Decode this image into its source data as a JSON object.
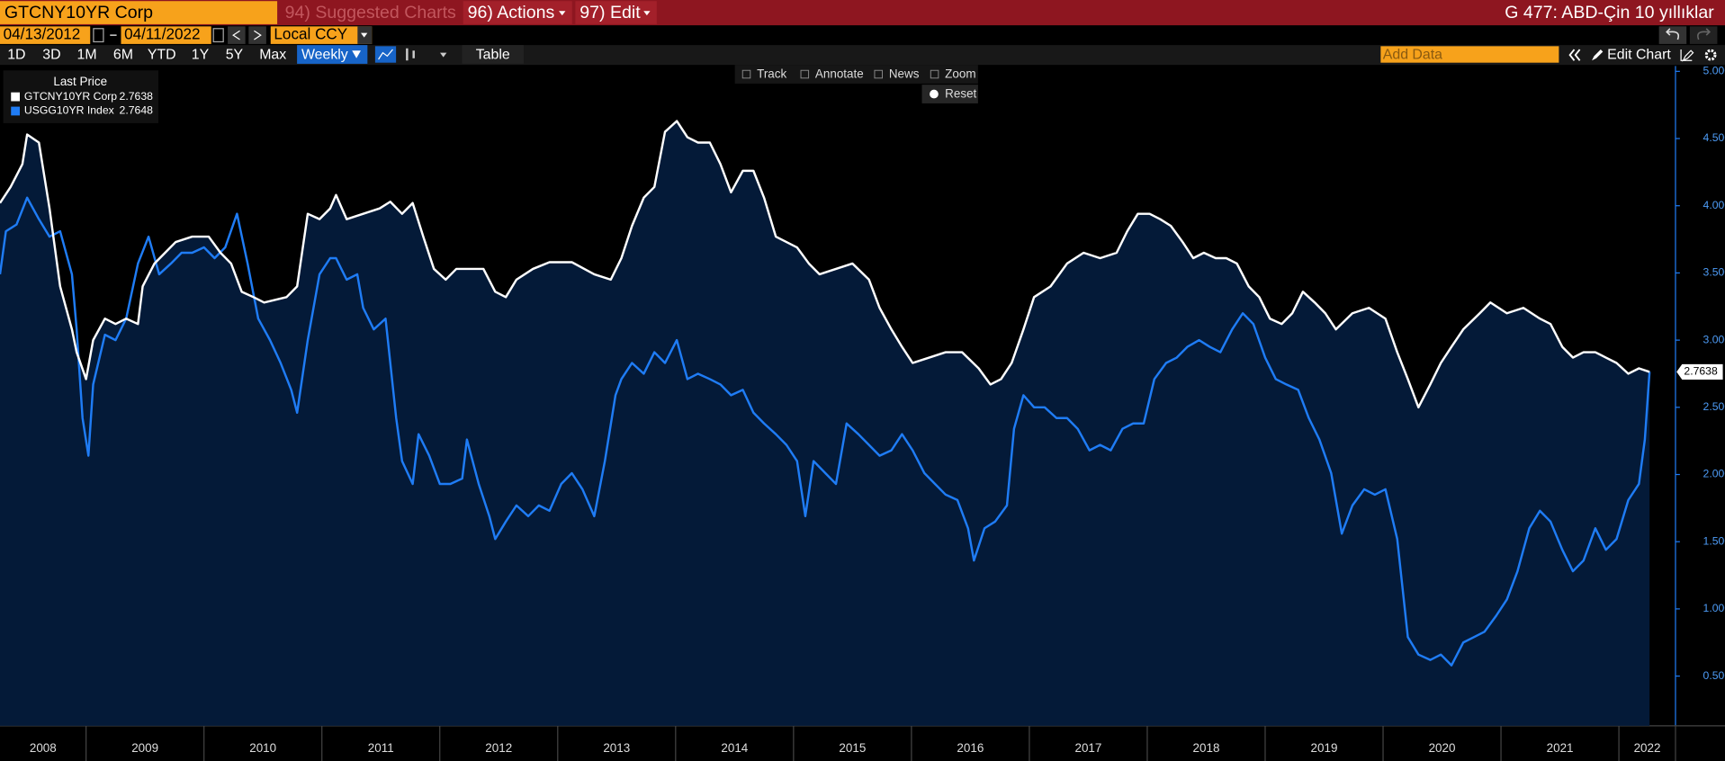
{
  "ui": {
    "ticker": "GTCNY10YR Corp",
    "suggested": "94) Suggested Charts",
    "actions": "96) Actions",
    "edit": "97) Edit",
    "title": "G 477: ABD-Çin 10 yıllıklar",
    "start_date": "04/13/2012",
    "end_date": "04/11/2022",
    "currency": "Local CCY",
    "periods": [
      "1D",
      "3D",
      "1M",
      "6M",
      "YTD",
      "1Y",
      "5Y",
      "Max"
    ],
    "frequency": "Weekly",
    "table": "Table",
    "add_data": "Add Data",
    "edit_chart": "Edit Chart",
    "tools": [
      "Track",
      "Annotate",
      "News",
      "Zoom"
    ],
    "reset": "Reset"
  },
  "chart_data": {
    "type": "line",
    "legend_title": "Last Price",
    "legend": "top-left",
    "grid": false,
    "xlim": [
      2008.27,
      2022.48
    ],
    "xticks": [
      2008,
      2009,
      2010,
      2011,
      2012,
      2013,
      2014,
      2015,
      2016,
      2017,
      2018,
      2019,
      2020,
      2021,
      2022
    ],
    "ylim": [
      0.13,
      5.04
    ],
    "yticks": [
      {
        "value": 0.5,
        "label": "0.5000"
      },
      {
        "value": 1,
        "label": "1.0000"
      },
      {
        "value": 1.5,
        "label": "1.5000"
      },
      {
        "value": 2,
        "label": "2.0000"
      },
      {
        "value": 2.5,
        "label": "2.5000"
      },
      {
        "value": 3,
        "label": "3.0000"
      },
      {
        "value": 3.5,
        "label": "3.5000"
      },
      {
        "value": 4,
        "label": "4.0000"
      },
      {
        "value": 4.5,
        "label": "4.5000"
      },
      {
        "value": 5,
        "label": "5.0000"
      }
    ],
    "series": [
      {
        "name": "GTCNY10YR Corp",
        "color": "#ffffff",
        "fill": "#041a38",
        "last_price": 2.7638,
        "x": [
          2008.27,
          2008.36,
          2008.46,
          2008.5,
          2008.6,
          2008.69,
          2008.78,
          2008.88,
          2008.92,
          2009.0,
          2009.06,
          2009.16,
          2009.25,
          2009.34,
          2009.44,
          2009.48,
          2009.58,
          2009.67,
          2009.76,
          2009.9,
          2010.04,
          2010.14,
          2010.23,
          2010.32,
          2010.42,
          2010.51,
          2010.7,
          2010.79,
          2010.88,
          2010.98,
          2011.07,
          2011.12,
          2011.21,
          2011.35,
          2011.49,
          2011.58,
          2011.68,
          2011.77,
          2011.86,
          2011.95,
          2012.05,
          2012.14,
          2012.28,
          2012.37,
          2012.47,
          2012.56,
          2012.65,
          2012.79,
          2012.93,
          2013.12,
          2013.31,
          2013.45,
          2013.54,
          2013.63,
          2013.73,
          2013.82,
          2013.91,
          2014.01,
          2014.1,
          2014.19,
          2014.29,
          2014.38,
          2014.47,
          2014.57,
          2014.66,
          2014.75,
          2014.85,
          2014.94,
          2015.03,
          2015.13,
          2015.22,
          2015.36,
          2015.5,
          2015.64,
          2015.73,
          2015.83,
          2015.92,
          2016.01,
          2016.15,
          2016.29,
          2016.43,
          2016.57,
          2016.67,
          2016.76,
          2016.85,
          2016.95,
          2017.04,
          2017.18,
          2017.32,
          2017.46,
          2017.6,
          2017.74,
          2017.83,
          2017.92,
          2018.02,
          2018.11,
          2018.2,
          2018.3,
          2018.39,
          2018.48,
          2018.58,
          2018.67,
          2018.76,
          2018.86,
          2018.95,
          2019.04,
          2019.14,
          2019.23,
          2019.32,
          2019.42,
          2019.51,
          2019.6,
          2019.74,
          2019.88,
          2020.02,
          2020.12,
          2020.21,
          2020.3,
          2020.4,
          2020.49,
          2020.58,
          2020.68,
          2020.82,
          2020.91,
          2021.05,
          2021.19,
          2021.33,
          2021.42,
          2021.52,
          2021.61,
          2021.7,
          2021.8,
          2021.89,
          2021.98,
          2022.08,
          2022.17,
          2022.26
        ],
        "values": [
          4.02,
          4.14,
          4.31,
          4.53,
          4.47,
          3.98,
          3.4,
          3.08,
          2.91,
          2.71,
          3.0,
          3.16,
          3.12,
          3.16,
          3.12,
          3.4,
          3.57,
          3.65,
          3.73,
          3.77,
          3.77,
          3.65,
          3.57,
          3.36,
          3.32,
          3.28,
          3.32,
          3.4,
          3.94,
          3.9,
          3.98,
          4.08,
          3.9,
          3.94,
          3.98,
          4.03,
          3.94,
          4.02,
          3.77,
          3.53,
          3.45,
          3.53,
          3.53,
          3.53,
          3.36,
          3.32,
          3.45,
          3.53,
          3.58,
          3.58,
          3.49,
          3.45,
          3.61,
          3.85,
          4.06,
          4.14,
          4.55,
          4.63,
          4.51,
          4.47,
          4.47,
          4.31,
          4.1,
          4.26,
          4.26,
          4.06,
          3.77,
          3.73,
          3.69,
          3.57,
          3.49,
          3.53,
          3.57,
          3.45,
          3.24,
          3.08,
          2.95,
          2.83,
          2.87,
          2.91,
          2.91,
          2.79,
          2.67,
          2.71,
          2.83,
          3.08,
          3.32,
          3.4,
          3.57,
          3.65,
          3.61,
          3.65,
          3.81,
          3.94,
          3.94,
          3.9,
          3.85,
          3.73,
          3.61,
          3.65,
          3.61,
          3.61,
          3.57,
          3.4,
          3.32,
          3.16,
          3.12,
          3.2,
          3.36,
          3.28,
          3.2,
          3.08,
          3.2,
          3.24,
          3.16,
          2.91,
          2.71,
          2.5,
          2.67,
          2.83,
          2.95,
          3.08,
          3.2,
          3.28,
          3.2,
          3.24,
          3.16,
          3.12,
          2.95,
          2.87,
          2.91,
          2.91,
          2.87,
          2.83,
          2.75,
          2.79,
          2.7638
        ]
      },
      {
        "name": "USGG10YR Index",
        "color": "#1f7cf5",
        "last_price": 2.7648,
        "x": [
          2008.27,
          2008.32,
          2008.41,
          2008.5,
          2008.6,
          2008.69,
          2008.78,
          2008.88,
          2008.92,
          2008.97,
          2009.02,
          2009.06,
          2009.16,
          2009.25,
          2009.34,
          2009.44,
          2009.53,
          2009.62,
          2009.72,
          2009.81,
          2009.9,
          2010.0,
          2010.09,
          2010.18,
          2010.28,
          2010.37,
          2010.46,
          2010.56,
          2010.65,
          2010.74,
          2010.79,
          2010.88,
          2010.98,
          2011.07,
          2011.12,
          2011.21,
          2011.3,
          2011.35,
          2011.44,
          2011.54,
          2011.63,
          2011.68,
          2011.77,
          2011.82,
          2011.91,
          2012.0,
          2012.09,
          2012.19,
          2012.23,
          2012.33,
          2012.42,
          2012.47,
          2012.56,
          2012.65,
          2012.75,
          2012.84,
          2012.93,
          2013.03,
          2013.12,
          2013.21,
          2013.31,
          2013.4,
          2013.49,
          2013.54,
          2013.63,
          2013.73,
          2013.82,
          2013.91,
          2014.01,
          2014.1,
          2014.19,
          2014.29,
          2014.38,
          2014.47,
          2014.57,
          2014.66,
          2014.75,
          2014.85,
          2014.94,
          2015.03,
          2015.1,
          2015.17,
          2015.27,
          2015.36,
          2015.45,
          2015.55,
          2015.64,
          2015.73,
          2015.83,
          2015.92,
          2016.01,
          2016.11,
          2016.2,
          2016.29,
          2016.39,
          2016.48,
          2016.53,
          2016.62,
          2016.71,
          2016.81,
          2016.87,
          2016.95,
          2017.04,
          2017.13,
          2017.23,
          2017.32,
          2017.41,
          2017.51,
          2017.6,
          2017.69,
          2017.79,
          2017.88,
          2017.97,
          2018.06,
          2018.16,
          2018.25,
          2018.34,
          2018.44,
          2018.53,
          2018.62,
          2018.72,
          2018.81,
          2018.9,
          2019.0,
          2019.09,
          2019.18,
          2019.28,
          2019.37,
          2019.46,
          2019.56,
          2019.65,
          2019.74,
          2019.84,
          2019.93,
          2020.02,
          2020.12,
          2020.21,
          2020.3,
          2020.4,
          2020.49,
          2020.58,
          2020.68,
          2020.77,
          2020.86,
          2020.96,
          2021.05,
          2021.14,
          2021.24,
          2021.33,
          2021.42,
          2021.52,
          2021.61,
          2021.7,
          2021.8,
          2021.89,
          2021.98,
          2022.08,
          2022.17,
          2022.22,
          2022.26
        ],
        "values": [
          3.49,
          3.81,
          3.86,
          4.06,
          3.9,
          3.77,
          3.81,
          3.49,
          3.08,
          2.42,
          2.14,
          2.67,
          3.04,
          3.0,
          3.16,
          3.57,
          3.77,
          3.49,
          3.57,
          3.65,
          3.65,
          3.69,
          3.61,
          3.69,
          3.94,
          3.57,
          3.16,
          3.0,
          2.83,
          2.63,
          2.46,
          3.0,
          3.49,
          3.61,
          3.61,
          3.45,
          3.49,
          3.24,
          3.08,
          3.16,
          2.42,
          2.1,
          1.93,
          2.3,
          2.14,
          1.93,
          1.93,
          1.97,
          2.26,
          1.93,
          1.69,
          1.52,
          1.65,
          1.77,
          1.69,
          1.77,
          1.73,
          1.93,
          2.01,
          1.89,
          1.69,
          2.1,
          2.59,
          2.71,
          2.83,
          2.75,
          2.91,
          2.83,
          3.0,
          2.71,
          2.75,
          2.71,
          2.67,
          2.59,
          2.63,
          2.46,
          2.38,
          2.3,
          2.22,
          2.1,
          1.69,
          2.1,
          2.01,
          1.93,
          2.38,
          2.3,
          2.22,
          2.14,
          2.18,
          2.3,
          2.18,
          2.01,
          1.93,
          1.85,
          1.81,
          1.6,
          1.36,
          1.6,
          1.65,
          1.77,
          2.34,
          2.59,
          2.5,
          2.5,
          2.42,
          2.42,
          2.34,
          2.18,
          2.22,
          2.18,
          2.34,
          2.38,
          2.38,
          2.71,
          2.83,
          2.87,
          2.95,
          3.0,
          2.95,
          2.91,
          3.08,
          3.2,
          3.12,
          2.87,
          2.71,
          2.67,
          2.63,
          2.42,
          2.26,
          2.01,
          1.56,
          1.77,
          1.89,
          1.85,
          1.89,
          1.52,
          0.79,
          0.66,
          0.62,
          0.66,
          0.58,
          0.75,
          0.79,
          0.83,
          0.95,
          1.07,
          1.28,
          1.6,
          1.73,
          1.65,
          1.44,
          1.28,
          1.36,
          1.6,
          1.44,
          1.52,
          1.81,
          1.93,
          2.26,
          2.7648
        ]
      }
    ]
  }
}
